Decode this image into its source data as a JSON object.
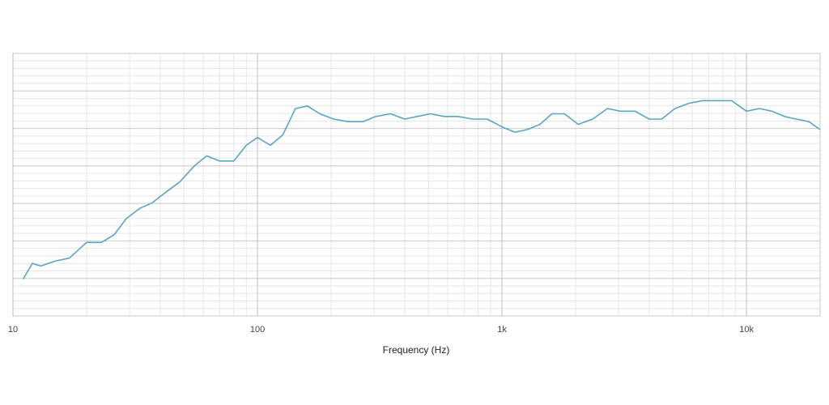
{
  "chart_data": {
    "type": "line",
    "title": "",
    "xlabel": "Frequency (Hz)",
    "ylabel": "",
    "x_scale": "log",
    "xlim": [
      10,
      20000
    ],
    "ylim": [
      0,
      1
    ],
    "grid": true,
    "x_tick_labels": [
      {
        "value": 10,
        "label": "10"
      },
      {
        "value": 100,
        "label": "100"
      },
      {
        "value": 1000,
        "label": "1k"
      },
      {
        "value": 10000,
        "label": "10k"
      }
    ],
    "colors": {
      "line": "#5aa5c6",
      "grid_major": "#c8c8c8",
      "grid_minor": "#e6e6e6"
    },
    "series": [
      {
        "x": [
          11,
          12,
          13,
          15,
          17,
          20,
          23,
          26,
          29,
          33,
          37,
          42,
          48,
          55,
          62,
          70,
          80,
          90,
          100,
          113,
          127,
          143,
          160,
          180,
          205,
          235,
          270,
          305,
          350,
          400,
          450,
          510,
          580,
          660,
          760,
          870,
          1000,
          1130,
          1270,
          1430,
          1600,
          1800,
          2050,
          2350,
          2700,
          3050,
          3500,
          4000,
          4500,
          5100,
          5800,
          6600,
          7600,
          8700,
          10000,
          11300,
          12700,
          14300,
          16000,
          18000,
          20000
        ],
        "y": [
          0.14,
          0.2,
          0.19,
          0.21,
          0.22,
          0.28,
          0.28,
          0.31,
          0.37,
          0.41,
          0.43,
          0.47,
          0.51,
          0.57,
          0.61,
          0.59,
          0.59,
          0.65,
          0.68,
          0.65,
          0.69,
          0.79,
          0.8,
          0.77,
          0.75,
          0.74,
          0.74,
          0.76,
          0.77,
          0.75,
          0.76,
          0.77,
          0.76,
          0.76,
          0.75,
          0.75,
          0.72,
          0.7,
          0.71,
          0.73,
          0.77,
          0.77,
          0.73,
          0.75,
          0.79,
          0.78,
          0.78,
          0.75,
          0.75,
          0.79,
          0.81,
          0.82,
          0.82,
          0.82,
          0.78,
          0.79,
          0.78,
          0.76,
          0.75,
          0.74,
          0.71
        ]
      }
    ]
  }
}
